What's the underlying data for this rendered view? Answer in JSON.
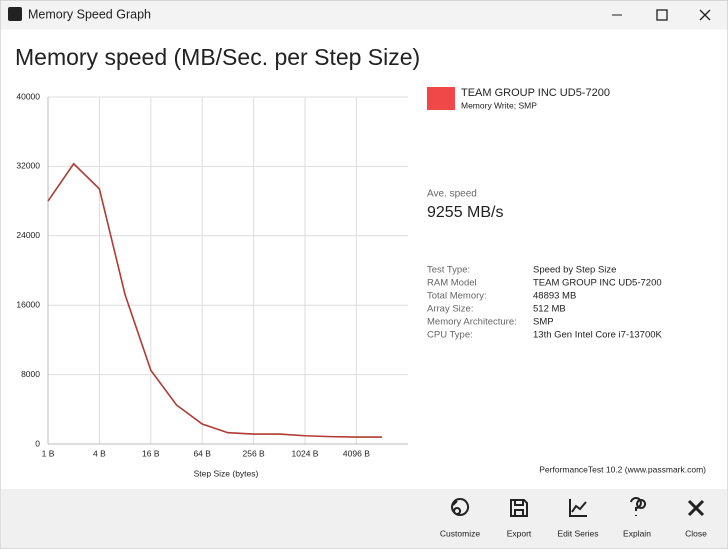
{
  "window": {
    "title": "Memory Speed Graph"
  },
  "chart_data": {
    "type": "line",
    "title": "Memory speed (MB/Sec. per Step Size)",
    "x_label": "Step Size (bytes)",
    "categories": [
      "1 B",
      null,
      "4 B",
      null,
      "16 B",
      null,
      "64 B",
      null,
      "256 B",
      null,
      "1024 B",
      null,
      "4096 B",
      null
    ],
    "series": [
      {
        "name": "TEAM GROUP INC UD5-7200",
        "description": "Memory Write; SMP",
        "color": "#b03a34",
        "values": [
          28000,
          32300,
          29400,
          17200,
          8500,
          4500,
          2300,
          1300,
          1150,
          1150,
          950,
          850,
          800,
          800
        ]
      }
    ],
    "legend_color": "#f04848",
    "ylim": [
      0,
      40000
    ],
    "yticks": [
      0,
      8000,
      16000,
      24000,
      32000,
      40000
    ],
    "grid": true
  },
  "summary": {
    "label": "Ave. speed",
    "value": "9255 MB/s"
  },
  "info": [
    [
      "Test Type:",
      "Speed by Step Size"
    ],
    [
      "RAM Model",
      "TEAM GROUP INC UD5-7200"
    ],
    [
      "Total Memory:",
      "48893 MB"
    ],
    [
      "Array Size:",
      "512 MB"
    ],
    [
      "Memory Architecture:",
      "SMP"
    ],
    [
      "CPU Type:",
      "13th Gen Intel Core i7-13700K"
    ]
  ],
  "credit": "PerformanceTest 10.2 (www.passmark.com)",
  "toolbar": [
    "Customize",
    "Export",
    "Edit Series",
    "Explain",
    "Close"
  ]
}
